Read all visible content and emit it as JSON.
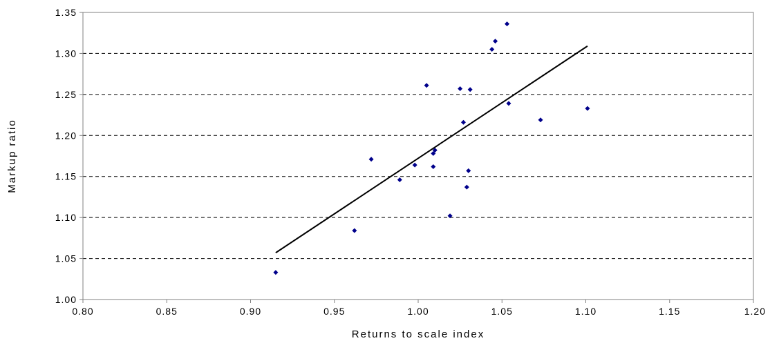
{
  "chart_data": {
    "type": "scatter",
    "title": "",
    "xlabel": "Returns to scale index",
    "ylabel": "Markup ratio",
    "xlim": [
      0.8,
      1.2
    ],
    "ylim": [
      1.0,
      1.35
    ],
    "x_ticks": [
      "0.80",
      "0.85",
      "0.90",
      "0.95",
      "1.00",
      "1.05",
      "1.10",
      "1.15",
      "1.20"
    ],
    "y_ticks": [
      "1.00",
      "1.05",
      "1.10",
      "1.15",
      "1.20",
      "1.25",
      "1.30",
      "1.35"
    ],
    "grid": "horizontal dashed",
    "legend": "none",
    "series": [
      {
        "marker_color": "#00008b",
        "points": [
          {
            "x": 0.915,
            "y": 1.033
          },
          {
            "x": 0.962,
            "y": 1.084
          },
          {
            "x": 0.972,
            "y": 1.171
          },
          {
            "x": 0.989,
            "y": 1.146
          },
          {
            "x": 0.998,
            "y": 1.164
          },
          {
            "x": 1.005,
            "y": 1.261
          },
          {
            "x": 1.009,
            "y": 1.162
          },
          {
            "x": 1.009,
            "y": 1.178
          },
          {
            "x": 1.01,
            "y": 1.182
          },
          {
            "x": 1.019,
            "y": 1.102
          },
          {
            "x": 1.025,
            "y": 1.257
          },
          {
            "x": 1.027,
            "y": 1.216
          },
          {
            "x": 1.029,
            "y": 1.137
          },
          {
            "x": 1.03,
            "y": 1.157
          },
          {
            "x": 1.031,
            "y": 1.256
          },
          {
            "x": 1.044,
            "y": 1.305
          },
          {
            "x": 1.046,
            "y": 1.315
          },
          {
            "x": 1.053,
            "y": 1.336
          },
          {
            "x": 1.054,
            "y": 1.239
          },
          {
            "x": 1.073,
            "y": 1.219
          },
          {
            "x": 1.101,
            "y": 1.233
          }
        ]
      }
    ],
    "trendline": {
      "color": "#000000",
      "points": [
        {
          "x": 0.915,
          "y": 1.057
        },
        {
          "x": 1.101,
          "y": 1.309
        }
      ]
    }
  }
}
